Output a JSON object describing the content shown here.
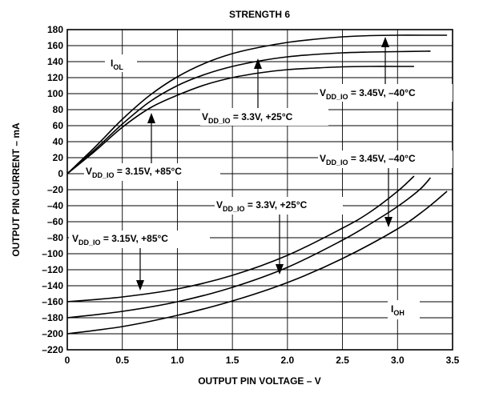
{
  "chart_data": {
    "type": "line",
    "title": "STRENGTH 6",
    "xlabel": "OUTPUT PIN VOLTAGE – V",
    "ylabel": "OUTPUT PIN CURRENT – mA",
    "xlim": [
      0,
      3.5
    ],
    "ylim": [
      -220,
      180
    ],
    "xticks": [
      "0",
      "0.5",
      "1.0",
      "1.5",
      "2.0",
      "2.5",
      "3.0",
      "3.5"
    ],
    "yticks": [
      "180",
      "160",
      "140",
      "120",
      "100",
      "80",
      "60",
      "40",
      "20",
      "0",
      "–20",
      "–40",
      "–60",
      "–80",
      "–100",
      "–120",
      "–140",
      "–160",
      "–180",
      "–200",
      "–220"
    ],
    "grid": true,
    "region_labels": {
      "iol": {
        "main": "I",
        "sub": "OL"
      },
      "ioh": {
        "main": "I",
        "sub": "OH"
      }
    },
    "annotations": {
      "iol_hot": {
        "pre": "V",
        "sub": "DD_IO",
        "post": " = 3.15V, +85°C"
      },
      "iol_room": {
        "pre": "V",
        "sub": "DD_IO",
        "post": " = 3.3V, +25°C"
      },
      "iol_cold": {
        "pre": "V",
        "sub": "DD_IO",
        "post": " = 3.45V, –40°C"
      },
      "ioh_hot": {
        "pre": "V",
        "sub": "DD_IO",
        "post": " = 3.15V, +85°C"
      },
      "ioh_room": {
        "pre": "V",
        "sub": "DD_IO",
        "post": " = 3.3V, +25°C"
      },
      "ioh_cold": {
        "pre": "V",
        "sub": "DD_IO",
        "post": " = 3.45V, –40°C"
      }
    },
    "series": [
      {
        "group": "IOL",
        "x": [
          0,
          0.25,
          0.5,
          0.75,
          1.0,
          1.25,
          1.5,
          1.75,
          2.0,
          2.25,
          2.5,
          2.75,
          3.0,
          3.15
        ],
        "values": [
          0,
          28,
          58,
          82,
          98,
          111,
          120,
          126,
          130,
          132,
          133.5,
          134,
          134,
          134
        ]
      },
      {
        "group": "IOL",
        "x": [
          0,
          0.25,
          0.5,
          0.75,
          1.0,
          1.25,
          1.5,
          1.75,
          2.0,
          2.25,
          2.5,
          2.75,
          3.0,
          3.25,
          3.3
        ],
        "values": [
          0,
          30,
          62,
          90,
          110,
          124,
          134,
          141,
          146,
          149,
          151,
          152,
          152.5,
          153,
          153
        ]
      },
      {
        "group": "IOL",
        "x": [
          0,
          0.25,
          0.5,
          0.75,
          1.0,
          1.25,
          1.5,
          1.75,
          2.0,
          2.25,
          2.5,
          2.75,
          3.0,
          3.25,
          3.45
        ],
        "values": [
          0,
          33,
          68,
          98,
          121,
          138,
          150,
          158,
          164,
          168,
          171,
          172.5,
          173,
          173,
          173
        ]
      },
      {
        "group": "IOH",
        "x": [
          0,
          0.5,
          1.0,
          1.5,
          2.0,
          2.5,
          2.75,
          3.0,
          3.15
        ],
        "values": [
          -160,
          -154,
          -144,
          -127,
          -102,
          -68,
          -48,
          -22,
          -3
        ]
      },
      {
        "group": "IOH",
        "x": [
          0,
          0.5,
          1.0,
          1.5,
          2.0,
          2.5,
          2.75,
          3.0,
          3.2,
          3.3
        ],
        "values": [
          -180,
          -172,
          -160,
          -142,
          -117,
          -83,
          -63,
          -41,
          -20,
          -5
        ]
      },
      {
        "group": "IOH",
        "x": [
          0,
          0.5,
          1.0,
          1.5,
          2.0,
          2.5,
          3.0,
          3.25,
          3.45
        ],
        "values": [
          -200,
          -191,
          -177,
          -159,
          -136,
          -106,
          -69,
          -45,
          -22
        ]
      }
    ]
  }
}
